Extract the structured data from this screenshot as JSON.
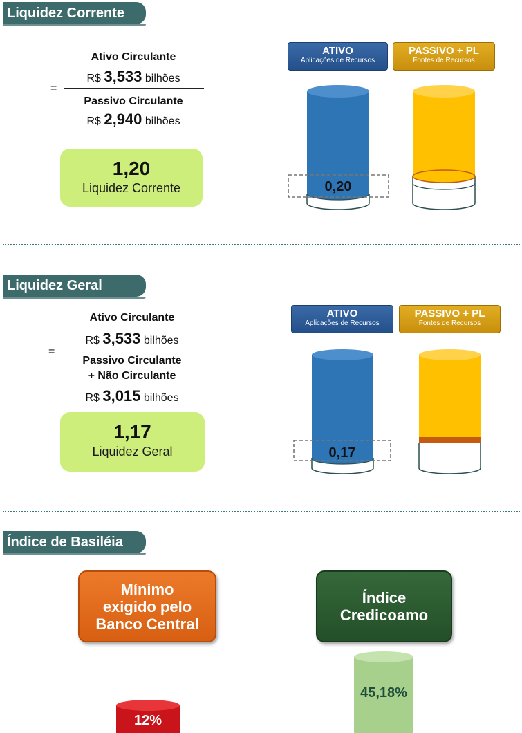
{
  "liquidez_corrente": {
    "title": "Liquidez Corrente",
    "equals": "=",
    "numerator_label": "Ativo Circulante",
    "numerator_prefix": "R$",
    "numerator_value": "3,533",
    "numerator_unit": "bilhões",
    "denominator_label": "Passivo Circulante",
    "denominator_prefix": "R$",
    "denominator_value": "2,940",
    "denominator_unit": "bilhões",
    "result_value": "1,20",
    "result_caption": "Liquidez Corrente",
    "ativo_title": "ATIVO",
    "ativo_subtitle": "Aplicações de Recursos",
    "passivo_title": "PASSIVO + PL",
    "passivo_subtitle": "Fontes de Recursos",
    "surplus_label": "0,20"
  },
  "liquidez_geral": {
    "title": "Liquidez Geral",
    "equals": "=",
    "numerator_label": "Ativo Circulante",
    "numerator_prefix": "R$",
    "numerator_value": "3,533",
    "numerator_unit": "bilhões",
    "denominator_label_1": "Passivo Circulante",
    "denominator_label_2": "+ Não Circulante",
    "denominator_prefix": "R$",
    "denominator_value": "3,015",
    "denominator_unit": "bilhões",
    "result_value": "1,17",
    "result_caption": "Liquidez Geral",
    "ativo_title": "ATIVO",
    "ativo_subtitle": "Aplicações de Recursos",
    "passivo_title": "PASSIVO + PL",
    "passivo_subtitle": "Fontes de Recursos",
    "surplus_label": "0,17"
  },
  "basileia": {
    "title": "Índice de Basiléia",
    "minimo_label": "Mínimo exigido pelo Banco Central",
    "minimo_value": "12%",
    "indice_label": "Índice Credicoamo",
    "indice_value": "45,18%"
  },
  "colors": {
    "section_tab": "#3d6b6b",
    "ativo_blue": "#2e75b6",
    "passivo_yellow": "#ffc000",
    "result_green": "#cdee7a",
    "minimo_orange": "#e06a1c",
    "indice_green": "#2e5a2e",
    "minimo_cylinder": "#c8141a",
    "indice_cylinder": "#a8d08d"
  }
}
